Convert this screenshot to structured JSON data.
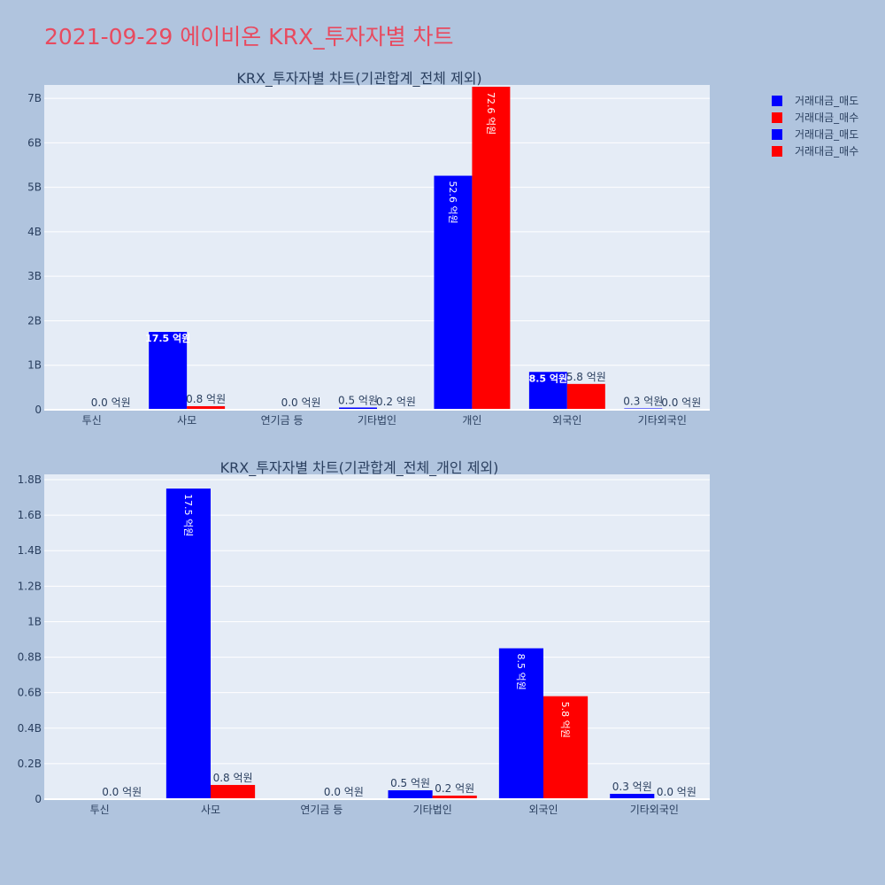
{
  "title": "2021-09-29 에이비온 KRX_투자자별 차트",
  "legend": [
    {
      "label": "거래대금_매도",
      "color": "#0000ff"
    },
    {
      "label": "거래대금_매수",
      "color": "#ff0000"
    },
    {
      "label": "거래대금_매도",
      "color": "#0000ff"
    },
    {
      "label": "거래대금_매수",
      "color": "#ff0000"
    }
  ],
  "chart_data": [
    {
      "type": "bar",
      "title": "KRX_투자자별 차트(기관합계_전체 제외)",
      "categories": [
        "투신",
        "사모",
        "연기금 등",
        "기타법인",
        "개인",
        "외국인",
        "기타외국인"
      ],
      "series": [
        {
          "name": "거래대금_매도",
          "color": "#0000ff",
          "values": [
            0,
            1750000000,
            0,
            50000000,
            5260000000,
            850000000,
            30000000
          ],
          "labels": [
            "",
            "17.5 억원",
            "",
            "0.5 억원",
            "52.6 억원",
            "8.5 억원",
            "0.3 억원"
          ]
        },
        {
          "name": "거래대금_매수",
          "color": "#ff0000",
          "values": [
            0,
            80000000,
            0,
            20000000,
            7260000000,
            580000000,
            0
          ],
          "labels": [
            "0.0 억원",
            "0.8 억원",
            "0.0 억원",
            "0.2 억원",
            "72.6 억원",
            "5.8 억원",
            "0.0 억원"
          ]
        }
      ],
      "ylim": [
        0,
        7300000000
      ],
      "yticks": [
        0,
        1000000000,
        2000000000,
        3000000000,
        4000000000,
        5000000000,
        6000000000,
        7000000000
      ],
      "yticklabels": [
        "0",
        "1B",
        "2B",
        "3B",
        "4B",
        "5B",
        "6B",
        "7B"
      ],
      "xlabel": "",
      "ylabel": "",
      "grid": true
    },
    {
      "type": "bar",
      "title": "KRX_투자자별 차트(기관합계_전체_개인 제외)",
      "categories": [
        "투신",
        "사모",
        "연기금 등",
        "기타법인",
        "외국인",
        "기타외국인"
      ],
      "series": [
        {
          "name": "거래대금_매도",
          "color": "#0000ff",
          "values": [
            0,
            1750000000,
            0,
            50000000,
            850000000,
            30000000
          ],
          "labels": [
            "",
            "17.5 억원",
            "",
            "0.5 억원",
            "8.5 억원",
            "0.3 억원"
          ]
        },
        {
          "name": "거래대금_매수",
          "color": "#ff0000",
          "values": [
            0,
            80000000,
            0,
            20000000,
            580000000,
            0
          ],
          "labels": [
            "0.0 억원",
            "0.8 억원",
            "0.0 억원",
            "0.2 억원",
            "5.8 억원",
            "0.0 억원"
          ]
        }
      ],
      "ylim": [
        0,
        1830000000
      ],
      "yticks": [
        0,
        200000000,
        400000000,
        600000000,
        800000000,
        1000000000,
        1200000000,
        1400000000,
        1600000000,
        1800000000
      ],
      "yticklabels": [
        "0",
        "0.2B",
        "0.4B",
        "0.6B",
        "0.8B",
        "1B",
        "1.2B",
        "1.4B",
        "1.6B",
        "1.8B"
      ],
      "xlabel": "",
      "ylabel": "",
      "grid": true
    }
  ]
}
